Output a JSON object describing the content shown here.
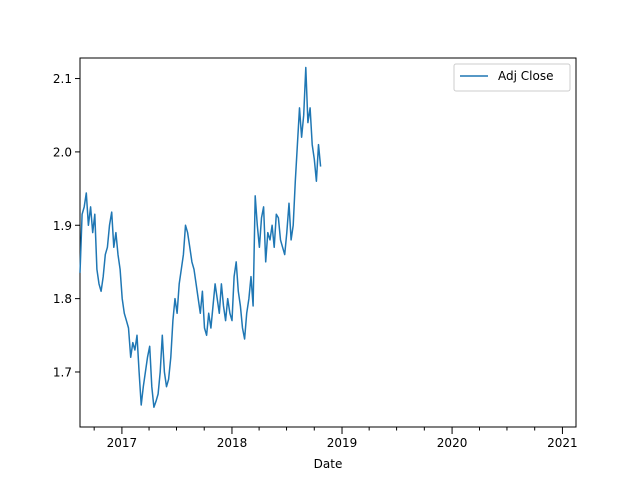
{
  "chart_data": {
    "type": "line",
    "xlabel": "Date",
    "ylabel": "",
    "title": "",
    "grid": false,
    "legend": {
      "position": "upper-right",
      "entries": [
        "Adj Close"
      ]
    },
    "x_axis": {
      "type": "date",
      "range": [
        "2016-08-15",
        "2021-02-15"
      ],
      "major_tick_labels": [
        "2017",
        "2018",
        "2019",
        "2020",
        "2021"
      ],
      "major_tick_dates": [
        "2017-01-01",
        "2018-01-01",
        "2019-01-01",
        "2020-01-01",
        "2021-01-01"
      ]
    },
    "y_axis": {
      "range": [
        1.625,
        2.128
      ],
      "tick_values": [
        1.7,
        1.8,
        1.9,
        2.0,
        2.1
      ],
      "tick_labels": [
        "1.7",
        "1.8",
        "1.9",
        "2.0",
        "2.1"
      ]
    },
    "colors": {
      "series": "#1f77b4",
      "axes": "#000000",
      "legend_border": "#cccccc"
    },
    "series": [
      {
        "name": "Adj Close",
        "x": [
          "2016-08-15",
          "2016-08-22",
          "2016-08-29",
          "2016-09-05",
          "2016-09-12",
          "2016-09-19",
          "2016-09-26",
          "2016-10-03",
          "2016-10-10",
          "2016-10-17",
          "2016-10-24",
          "2016-10-31",
          "2016-11-07",
          "2016-11-14",
          "2016-11-21",
          "2016-11-28",
          "2016-12-05",
          "2016-12-12",
          "2016-12-19",
          "2016-12-26",
          "2017-01-02",
          "2017-01-09",
          "2017-01-16",
          "2017-01-23",
          "2017-01-30",
          "2017-02-06",
          "2017-02-13",
          "2017-02-20",
          "2017-02-27",
          "2017-03-06",
          "2017-03-13",
          "2017-03-20",
          "2017-03-27",
          "2017-04-03",
          "2017-04-10",
          "2017-04-17",
          "2017-04-24",
          "2017-05-01",
          "2017-05-08",
          "2017-05-15",
          "2017-05-22",
          "2017-05-29",
          "2017-06-05",
          "2017-06-12",
          "2017-06-19",
          "2017-06-26",
          "2017-07-03",
          "2017-07-10",
          "2017-07-17",
          "2017-07-24",
          "2017-07-31",
          "2017-08-07",
          "2017-08-14",
          "2017-08-21",
          "2017-08-28",
          "2017-09-04",
          "2017-09-11",
          "2017-09-18",
          "2017-09-25",
          "2017-10-02",
          "2017-10-09",
          "2017-10-16",
          "2017-10-23",
          "2017-10-30",
          "2017-11-06",
          "2017-11-13",
          "2017-11-20",
          "2017-11-27",
          "2017-12-04",
          "2017-12-11",
          "2017-12-18",
          "2017-12-25",
          "2018-01-01",
          "2018-01-08",
          "2018-01-15",
          "2018-01-22",
          "2018-01-29",
          "2018-02-05",
          "2018-02-12",
          "2018-02-19",
          "2018-02-26",
          "2018-03-05",
          "2018-03-12",
          "2018-03-19",
          "2018-03-26",
          "2018-04-02",
          "2018-04-09",
          "2018-04-16",
          "2018-04-23",
          "2018-04-30",
          "2018-05-07",
          "2018-05-14",
          "2018-05-21",
          "2018-05-28",
          "2018-06-04",
          "2018-06-11",
          "2018-06-18",
          "2018-06-25",
          "2018-07-02",
          "2018-07-09",
          "2018-07-16",
          "2018-07-23",
          "2018-07-30",
          "2018-08-06",
          "2018-08-13",
          "2018-08-20",
          "2018-08-27",
          "2018-09-03",
          "2018-09-10",
          "2018-09-17",
          "2018-09-24",
          "2018-10-01",
          "2018-10-08",
          "2018-10-15",
          "2018-10-22"
        ],
        "values": [
          1.835,
          1.915,
          1.925,
          1.944,
          1.9,
          1.925,
          1.89,
          1.915,
          1.84,
          1.82,
          1.81,
          1.83,
          1.86,
          1.87,
          1.9,
          1.918,
          1.87,
          1.89,
          1.86,
          1.84,
          1.8,
          1.78,
          1.77,
          1.76,
          1.72,
          1.74,
          1.73,
          1.75,
          1.7,
          1.655,
          1.68,
          1.7,
          1.72,
          1.735,
          1.68,
          1.652,
          1.66,
          1.67,
          1.7,
          1.75,
          1.7,
          1.68,
          1.69,
          1.72,
          1.77,
          1.8,
          1.78,
          1.82,
          1.84,
          1.86,
          1.9,
          1.89,
          1.87,
          1.85,
          1.84,
          1.82,
          1.8,
          1.78,
          1.81,
          1.76,
          1.75,
          1.78,
          1.76,
          1.79,
          1.82,
          1.8,
          1.78,
          1.82,
          1.79,
          1.77,
          1.8,
          1.78,
          1.77,
          1.83,
          1.85,
          1.81,
          1.79,
          1.76,
          1.745,
          1.78,
          1.8,
          1.83,
          1.79,
          1.94,
          1.9,
          1.87,
          1.91,
          1.925,
          1.85,
          1.89,
          1.88,
          1.9,
          1.87,
          1.915,
          1.91,
          1.88,
          1.87,
          1.86,
          1.89,
          1.93,
          1.88,
          1.9,
          1.96,
          2.01,
          2.06,
          2.02,
          2.05,
          2.115,
          2.04,
          2.06,
          2.01,
          1.99,
          1.96,
          2.01,
          1.98
        ]
      }
    ]
  }
}
